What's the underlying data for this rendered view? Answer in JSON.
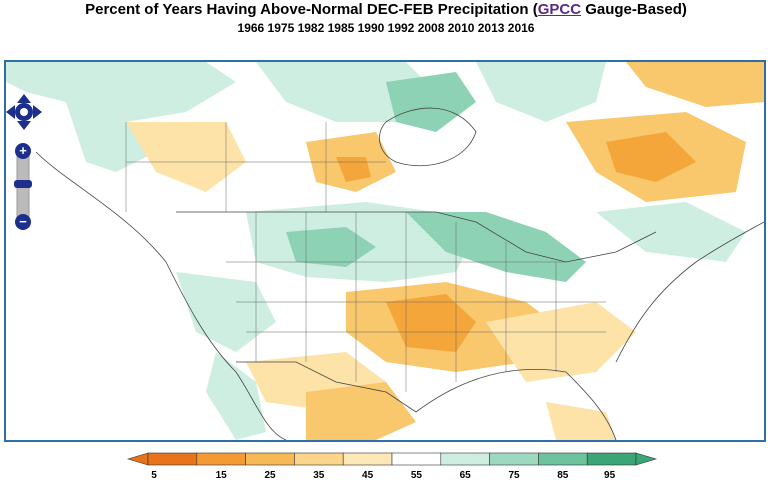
{
  "title": {
    "prefix": "Percent of Years Having Above-Normal DEC-FEB Precipitation (",
    "link": "GPCC",
    "suffix": " Gauge-Based)"
  },
  "subtitle": "1966 1975 1982 1985 1990 1992 2008 2010 2013 2016",
  "map_controls": {
    "pan": "pan-arrows-icon",
    "zoom_in": "+",
    "zoom_out": "−",
    "zoom_reset": "−"
  },
  "legend": {
    "ticks": [
      "5",
      "15",
      "25",
      "35",
      "45",
      "55",
      "65",
      "75",
      "85",
      "95"
    ],
    "colors": [
      "#e8731a",
      "#f39a33",
      "#f7b955",
      "#fbd68a",
      "#fde9b8",
      "#ffffff",
      "#cdeee0",
      "#9dd9c0",
      "#6cc39d",
      "#3aa576"
    ]
  },
  "colors": {
    "below_strong": "#f5a63a",
    "below_medium": "#f9c76c",
    "below_light": "#fde3a8",
    "above_light": "#cdeee0",
    "above_medium": "#8dd2b4",
    "above_strong": "#5dbb93",
    "border": "#2f6ea6"
  }
}
